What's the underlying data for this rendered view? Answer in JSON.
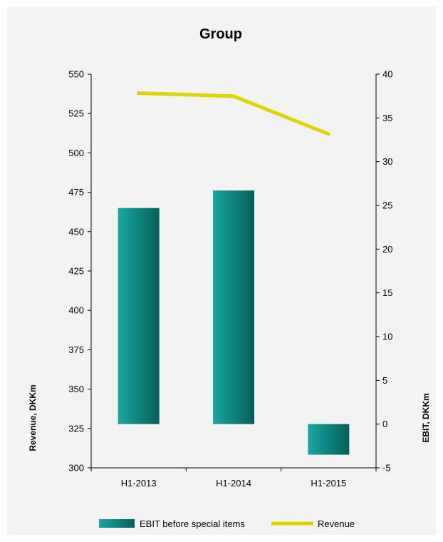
{
  "chart_data": {
    "type": "bar",
    "title": "Group",
    "categories": [
      "H1-2013",
      "H1-2014",
      "H1-2015"
    ],
    "series": [
      {
        "name": "EBIT before special items",
        "type": "bar",
        "axis": "right",
        "values": [
          24.7,
          26.7,
          -3.5
        ],
        "color": "#12938f"
      },
      {
        "name": "Revenue",
        "type": "line",
        "axis": "left",
        "values": [
          538,
          536,
          512
        ],
        "color": "#ded400"
      }
    ],
    "ylabel_left": "Revenue, DKKm",
    "ylabel_right": "EBIT, DKKm",
    "ylim_left": [
      300,
      550
    ],
    "yticks_left": [
      300,
      325,
      350,
      375,
      400,
      425,
      450,
      475,
      500,
      525,
      550
    ],
    "ylim_right": [
      -5,
      40
    ],
    "yticks_right": [
      -5,
      0,
      5,
      10,
      15,
      20,
      25,
      30,
      35,
      40
    ],
    "grid": false,
    "legend_position": "bottom"
  }
}
